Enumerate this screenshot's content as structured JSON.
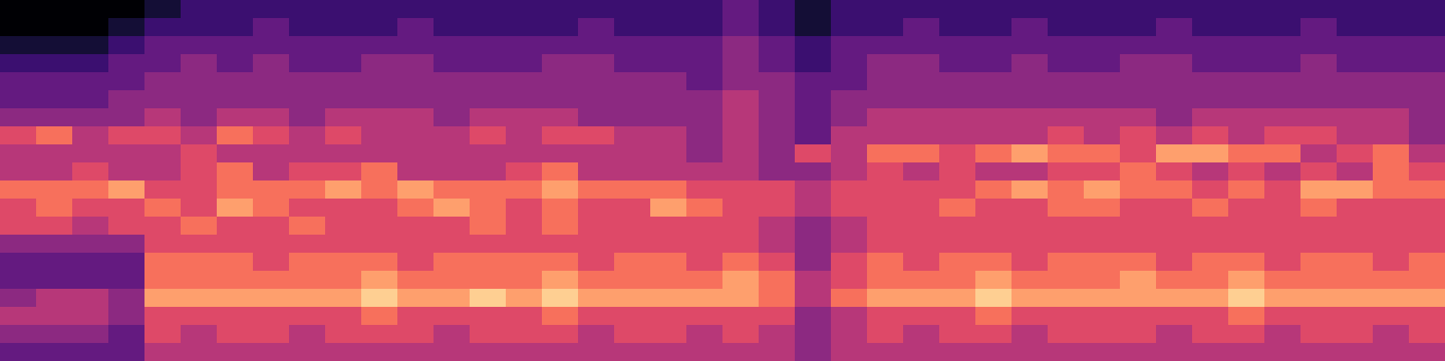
{
  "chart_data": {
    "type": "heatmap",
    "color": "magma",
    "tick_labels": false,
    "grid": false,
    "xlim": [
      -0.5,
      39.5
    ],
    "ylim": [
      19.5,
      -0.5
    ],
    "zlim": [
      0,
      10
    ],
    "cells": [
      [
        0,
        0,
        0,
        0,
        1,
        2,
        2,
        2,
        2,
        2,
        2,
        2,
        2,
        2,
        2,
        2,
        2,
        2,
        2,
        2,
        3,
        2,
        1,
        2,
        2,
        2,
        2,
        2,
        2,
        2,
        2,
        2,
        2,
        2,
        2,
        2,
        2,
        2,
        2,
        2
      ],
      [
        0,
        0,
        0,
        1,
        2,
        2,
        2,
        3,
        2,
        2,
        2,
        3,
        2,
        2,
        2,
        2,
        3,
        2,
        2,
        2,
        3,
        2,
        1,
        2,
        2,
        3,
        2,
        2,
        3,
        2,
        2,
        2,
        3,
        2,
        2,
        2,
        3,
        2,
        2,
        2
      ],
      [
        1,
        1,
        1,
        2,
        3,
        3,
        3,
        3,
        3,
        3,
        3,
        3,
        3,
        3,
        3,
        3,
        3,
        3,
        3,
        3,
        4,
        3,
        2,
        3,
        3,
        3,
        3,
        3,
        3,
        3,
        3,
        3,
        3,
        3,
        3,
        3,
        3,
        3,
        3,
        3
      ],
      [
        2,
        2,
        2,
        3,
        3,
        4,
        3,
        4,
        3,
        3,
        4,
        4,
        3,
        3,
        3,
        4,
        4,
        3,
        3,
        3,
        4,
        3,
        2,
        3,
        4,
        4,
        3,
        3,
        4,
        3,
        3,
        4,
        4,
        3,
        3,
        3,
        4,
        3,
        3,
        3
      ],
      [
        3,
        3,
        3,
        3,
        4,
        4,
        4,
        4,
        4,
        4,
        4,
        4,
        4,
        4,
        4,
        4,
        4,
        4,
        4,
        3,
        4,
        4,
        3,
        3,
        4,
        4,
        4,
        4,
        4,
        4,
        4,
        4,
        4,
        4,
        4,
        4,
        4,
        4,
        4,
        4
      ],
      [
        3,
        3,
        3,
        4,
        4,
        4,
        4,
        4,
        4,
        4,
        4,
        4,
        4,
        4,
        4,
        4,
        4,
        4,
        4,
        4,
        5,
        4,
        3,
        4,
        4,
        4,
        4,
        4,
        4,
        4,
        4,
        4,
        4,
        4,
        4,
        4,
        4,
        4,
        4,
        4
      ],
      [
        4,
        4,
        4,
        4,
        5,
        4,
        5,
        5,
        4,
        5,
        5,
        5,
        4,
        5,
        5,
        5,
        4,
        4,
        4,
        4,
        5,
        4,
        3,
        4,
        5,
        5,
        5,
        5,
        5,
        5,
        5,
        5,
        4,
        5,
        5,
        5,
        5,
        5,
        5,
        4
      ],
      [
        6,
        7,
        5,
        6,
        6,
        5,
        7,
        6,
        5,
        6,
        5,
        5,
        5,
        6,
        5,
        6,
        6,
        5,
        5,
        4,
        5,
        4,
        3,
        5,
        5,
        5,
        5,
        5,
        5,
        6,
        5,
        6,
        5,
        6,
        5,
        6,
        6,
        5,
        5,
        4
      ],
      [
        5,
        5,
        5,
        5,
        5,
        6,
        5,
        5,
        5,
        5,
        5,
        5,
        5,
        5,
        5,
        5,
        5,
        5,
        5,
        4,
        5,
        4,
        6,
        5,
        7,
        7,
        6,
        7,
        8,
        7,
        7,
        6,
        8,
        8,
        7,
        7,
        5,
        6,
        7,
        5
      ],
      [
        5,
        5,
        6,
        5,
        5,
        6,
        7,
        5,
        6,
        6,
        7,
        5,
        5,
        5,
        6,
        7,
        5,
        5,
        5,
        5,
        5,
        4,
        4,
        5,
        6,
        5,
        6,
        5,
        5,
        6,
        6,
        7,
        6,
        5,
        6,
        5,
        6,
        5,
        7,
        6
      ],
      [
        7,
        7,
        7,
        8,
        6,
        6,
        7,
        7,
        7,
        8,
        7,
        8,
        7,
        7,
        7,
        8,
        7,
        7,
        7,
        6,
        6,
        6,
        5,
        6,
        6,
        6,
        6,
        7,
        8,
        7,
        8,
        7,
        7,
        6,
        7,
        6,
        8,
        8,
        7,
        7
      ],
      [
        6,
        7,
        6,
        6,
        7,
        6,
        8,
        7,
        6,
        6,
        6,
        7,
        8,
        7,
        6,
        7,
        6,
        6,
        8,
        7,
        6,
        6,
        5,
        6,
        6,
        6,
        7,
        6,
        6,
        7,
        7,
        6,
        6,
        7,
        6,
        6,
        7,
        6,
        6,
        6
      ],
      [
        6,
        6,
        5,
        6,
        6,
        7,
        6,
        6,
        7,
        6,
        6,
        6,
        6,
        7,
        6,
        7,
        6,
        6,
        6,
        6,
        6,
        5,
        4,
        5,
        6,
        6,
        6,
        6,
        6,
        6,
        6,
        6,
        6,
        6,
        6,
        6,
        6,
        6,
        6,
        6
      ],
      [
        4,
        4,
        4,
        4,
        6,
        6,
        6,
        6,
        6,
        6,
        6,
        6,
        6,
        6,
        6,
        6,
        6,
        6,
        6,
        6,
        6,
        5,
        4,
        5,
        6,
        6,
        6,
        6,
        6,
        6,
        6,
        6,
        6,
        6,
        6,
        6,
        6,
        6,
        6,
        6
      ],
      [
        3,
        3,
        3,
        3,
        7,
        7,
        7,
        6,
        7,
        7,
        7,
        6,
        7,
        7,
        7,
        7,
        6,
        7,
        7,
        6,
        7,
        6,
        4,
        6,
        7,
        6,
        7,
        7,
        6,
        7,
        7,
        7,
        6,
        7,
        7,
        6,
        7,
        7,
        6,
        7
      ],
      [
        3,
        3,
        3,
        3,
        7,
        7,
        7,
        7,
        7,
        7,
        8,
        7,
        7,
        7,
        7,
        8,
        7,
        7,
        7,
        7,
        8,
        7,
        5,
        6,
        7,
        7,
        7,
        8,
        7,
        7,
        7,
        8,
        7,
        7,
        8,
        7,
        7,
        7,
        7,
        7
      ],
      [
        4,
        5,
        5,
        4,
        8,
        8,
        8,
        8,
        8,
        8,
        9,
        8,
        8,
        9,
        8,
        9,
        8,
        8,
        8,
        8,
        8,
        7,
        5,
        7,
        8,
        8,
        8,
        9,
        8,
        8,
        8,
        8,
        8,
        8,
        9,
        8,
        8,
        8,
        8,
        8
      ],
      [
        5,
        5,
        5,
        4,
        6,
        6,
        6,
        6,
        6,
        6,
        7,
        6,
        6,
        6,
        6,
        7,
        6,
        6,
        6,
        6,
        6,
        6,
        4,
        5,
        6,
        6,
        6,
        7,
        6,
        6,
        6,
        6,
        6,
        6,
        7,
        6,
        6,
        6,
        6,
        6
      ],
      [
        4,
        4,
        4,
        3,
        6,
        5,
        6,
        6,
        5,
        6,
        6,
        6,
        5,
        6,
        6,
        6,
        5,
        6,
        6,
        5,
        6,
        5,
        4,
        5,
        6,
        5,
        6,
        6,
        5,
        6,
        6,
        6,
        5,
        6,
        6,
        5,
        6,
        6,
        5,
        6
      ],
      [
        3,
        3,
        3,
        3,
        5,
        5,
        5,
        5,
        5,
        5,
        5,
        5,
        5,
        5,
        5,
        5,
        5,
        5,
        5,
        5,
        5,
        5,
        4,
        5,
        5,
        5,
        5,
        5,
        5,
        5,
        5,
        5,
        5,
        5,
        5,
        5,
        5,
        5,
        5,
        5
      ]
    ]
  }
}
